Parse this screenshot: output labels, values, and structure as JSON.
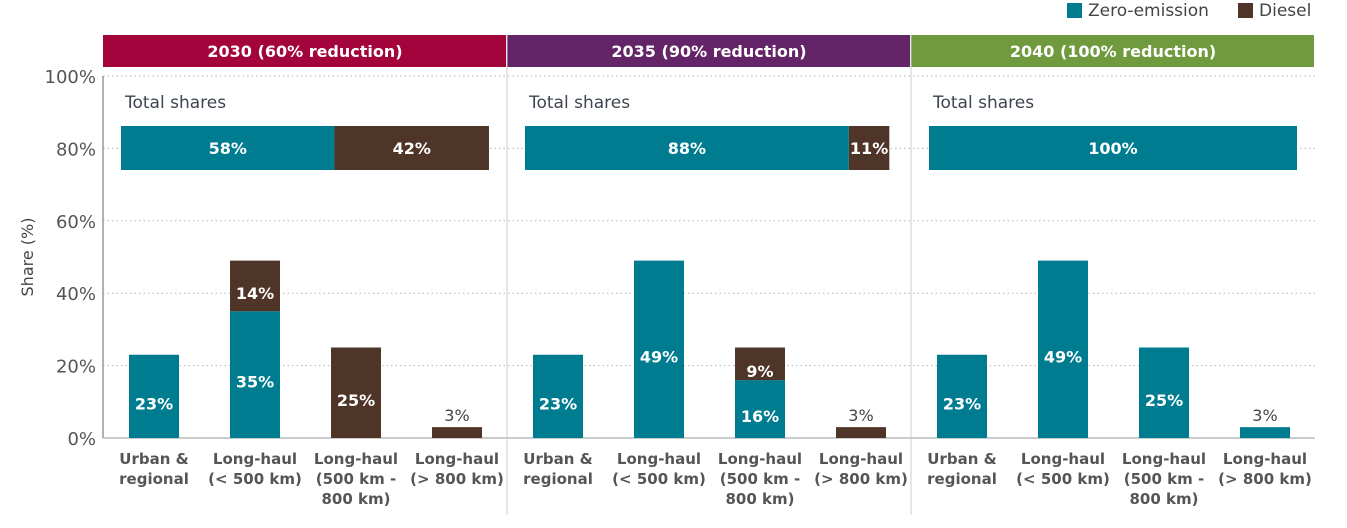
{
  "chart_data": {
    "type": "bar",
    "stacked": true,
    "ylabel": "Share (%)",
    "ylim": [
      0,
      100
    ],
    "yticks": [
      "0%",
      "20%",
      "40%",
      "60%",
      "80%",
      "100%"
    ],
    "grid": "horizontal dotted",
    "legend": {
      "position": "top-right",
      "entries": [
        {
          "name": "Zero-emission",
          "color": "#007c91"
        },
        {
          "name": "Diesel",
          "color": "#4f3428"
        }
      ]
    },
    "categories": [
      [
        "Urban &",
        "regional"
      ],
      [
        "Long-haul",
        "(< 500 km)"
      ],
      [
        "Long-haul",
        "(500 km -",
        "800 km)"
      ],
      [
        "Long-haul",
        "(> 800 km)"
      ]
    ],
    "total_shares_label": "Total shares",
    "panels": [
      {
        "title": "2030 (60% reduction)",
        "color": "#a3043b",
        "total": {
          "zero": 58,
          "diesel": 42
        },
        "series": [
          {
            "name": "Zero-emission",
            "values": [
              23,
              35,
              0,
              0
            ]
          },
          {
            "name": "Diesel",
            "values": [
              0,
              14,
              25,
              3
            ]
          }
        ]
      },
      {
        "title": "2035 (90% reduction)",
        "color": "#632468",
        "total": {
          "zero": 88,
          "diesel": 11
        },
        "series": [
          {
            "name": "Zero-emission",
            "values": [
              23,
              49,
              16,
              0
            ]
          },
          {
            "name": "Diesel",
            "values": [
              0,
              0,
              9,
              3
            ]
          }
        ]
      },
      {
        "title": "2040 (100% reduction)",
        "color": "#6f9a3e",
        "total": {
          "zero": 100,
          "diesel": 0
        },
        "series": [
          {
            "name": "Zero-emission",
            "values": [
              23,
              49,
              25,
              3
            ]
          },
          {
            "name": "Diesel",
            "values": [
              0,
              0,
              0,
              0
            ]
          }
        ]
      }
    ]
  }
}
